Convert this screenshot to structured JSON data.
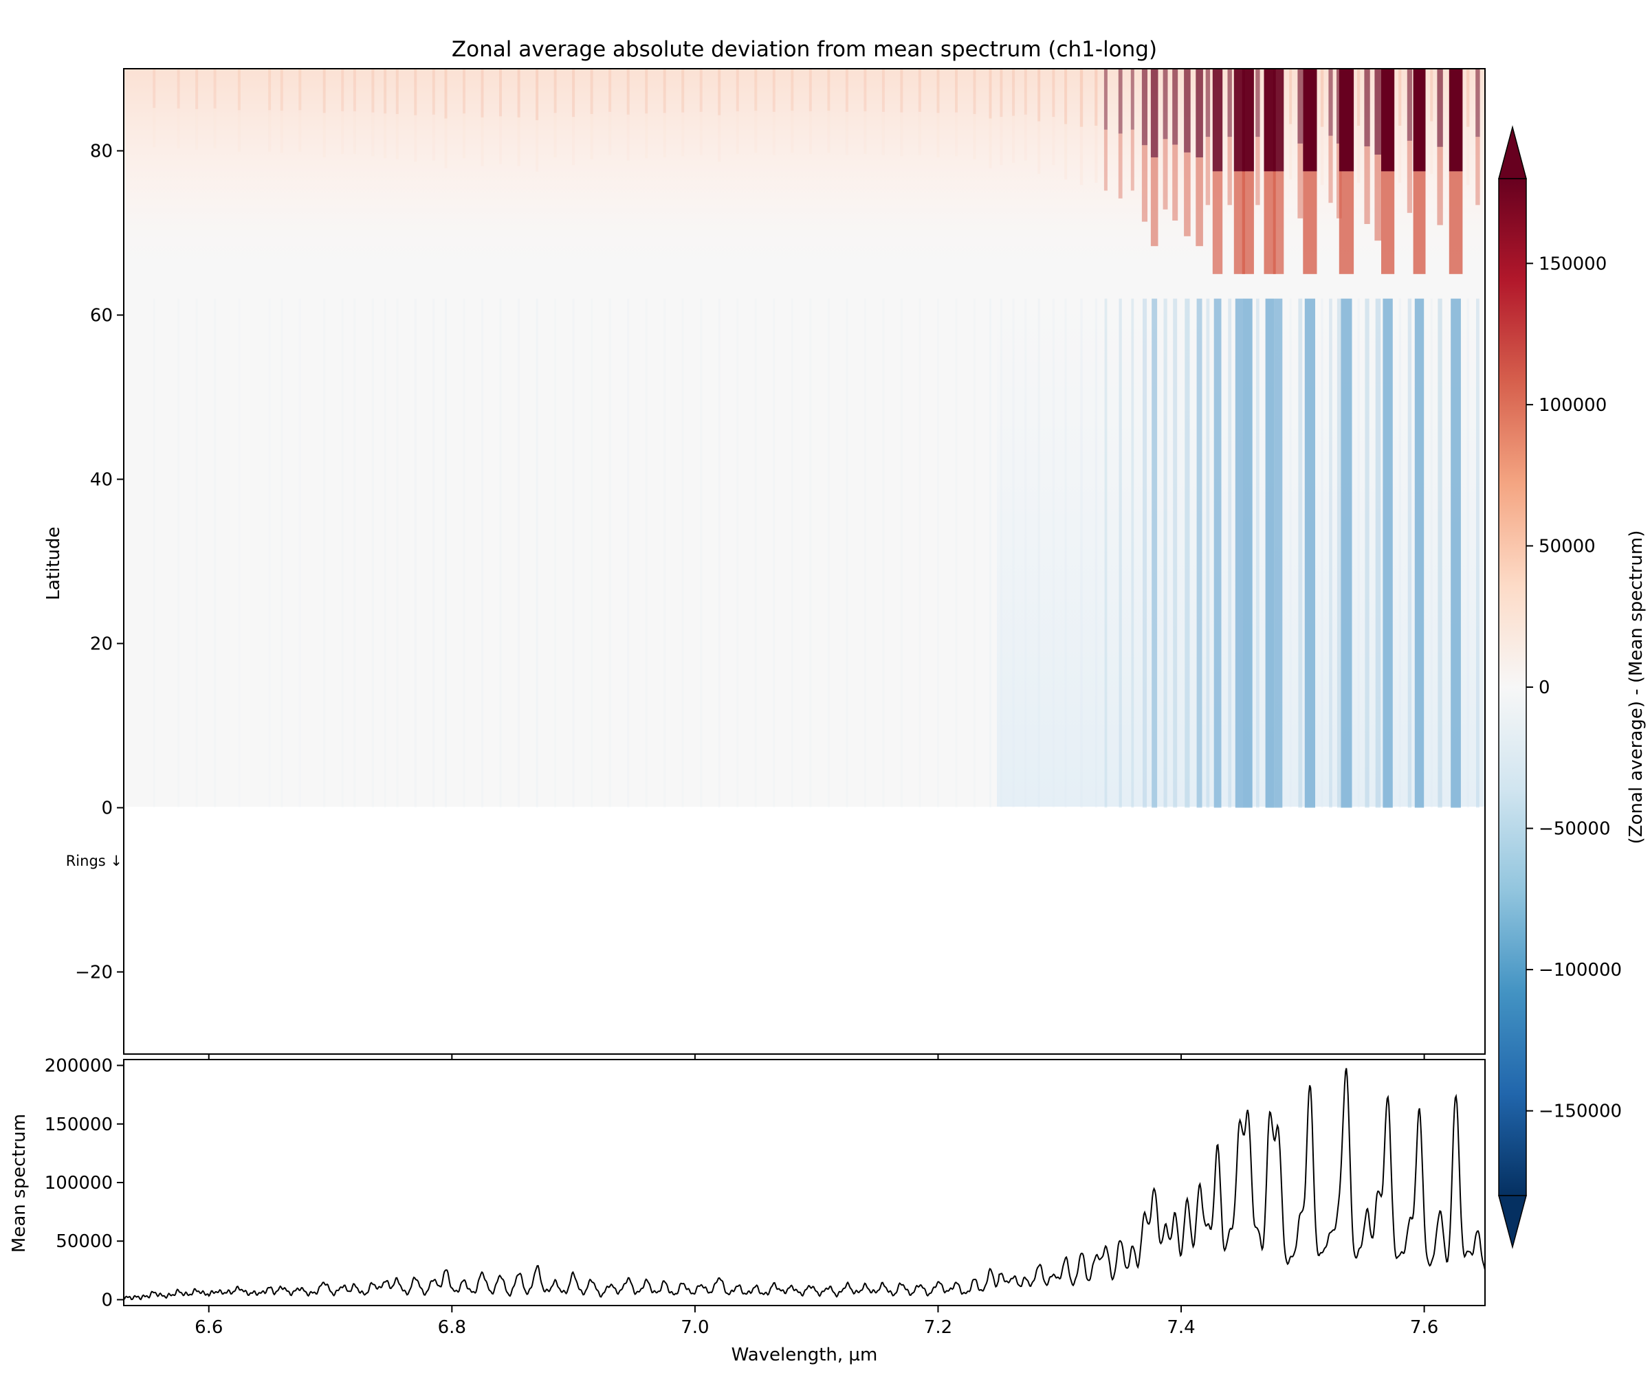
{
  "chart_data": [
    {
      "type": "heatmap",
      "title": "Zonal average absolute deviation from mean spectrum (ch1-long)",
      "xlabel": "",
      "ylabel": "Latitude",
      "xlim": [
        6.53,
        7.65
      ],
      "ylim": [
        -30,
        90
      ],
      "yticks": [
        80,
        60,
        40,
        20,
        0,
        -20
      ],
      "ytick_labels": [
        "80",
        "60",
        "40",
        "20",
        "0",
        "−20"
      ],
      "data_latitude_range": [
        0,
        90
      ],
      "annotation": "Rings ↓",
      "colorscale": "RdBu_r",
      "colorbar": {
        "label": "(Zonal average) - (Mean spectrum)",
        "range": [
          -180000,
          180000
        ],
        "extend": "both",
        "ticks": [
          150000,
          100000,
          50000,
          0,
          -50000,
          -100000,
          -150000
        ],
        "tick_labels": [
          "150000",
          "100000",
          "50000",
          "0",
          "−50000",
          "−100000",
          "−150000"
        ]
      }
    },
    {
      "type": "line",
      "title": "",
      "xlabel": "Wavelength, µm",
      "ylabel": "Mean spectrum",
      "xlim": [
        6.53,
        7.65
      ],
      "ylim": [
        -5000,
        205000
      ],
      "xticks": [
        6.6,
        6.8,
        7.0,
        7.2,
        7.4,
        7.6
      ],
      "xtick_labels": [
        "6.6",
        "6.8",
        "7.0",
        "7.2",
        "7.4",
        "7.6"
      ],
      "yticks": [
        0,
        50000,
        100000,
        150000,
        200000
      ],
      "ytick_labels": [
        "0",
        "50000",
        "100000",
        "150000",
        "200000"
      ],
      "series": [
        {
          "peaks": [
            [
              6.555,
              6000
            ],
            [
              6.575,
              7000
            ],
            [
              6.59,
              8000
            ],
            [
              6.605,
              7000
            ],
            [
              6.625,
              10000
            ],
            [
              6.65,
              10000
            ],
            [
              6.66,
              11000
            ],
            [
              6.675,
              10000
            ],
            [
              6.695,
              15000
            ],
            [
              6.71,
              12000
            ],
            [
              6.72,
              12000
            ],
            [
              6.735,
              14000
            ],
            [
              6.745,
              16000
            ],
            [
              6.755,
              17000
            ],
            [
              6.77,
              19000
            ],
            [
              6.785,
              18000
            ],
            [
              6.795,
              25000
            ],
            [
              6.81,
              16000
            ],
            [
              6.825,
              23000
            ],
            [
              6.84,
              21000
            ],
            [
              6.855,
              23000
            ],
            [
              6.87,
              28000
            ],
            [
              6.885,
              15000
            ],
            [
              6.9,
              22000
            ],
            [
              6.915,
              17000
            ],
            [
              6.93,
              13000
            ],
            [
              6.945,
              18000
            ],
            [
              6.96,
              16000
            ],
            [
              6.975,
              15000
            ],
            [
              6.99,
              14000
            ],
            [
              7.005,
              13000
            ],
            [
              7.02,
              19000
            ],
            [
              7.035,
              12000
            ],
            [
              7.05,
              11000
            ],
            [
              7.065,
              13000
            ],
            [
              7.08,
              11000
            ],
            [
              7.095,
              12000
            ],
            [
              7.11,
              11000
            ],
            [
              7.125,
              13000
            ],
            [
              7.14,
              12000
            ],
            [
              7.155,
              13000
            ],
            [
              7.17,
              14000
            ],
            [
              7.185,
              13000
            ],
            [
              7.2,
              15000
            ],
            [
              7.215,
              14000
            ],
            [
              7.23,
              17000
            ],
            [
              7.243,
              25000
            ],
            [
              7.252,
              22000
            ],
            [
              7.262,
              20000
            ],
            [
              7.272,
              18000
            ],
            [
              7.283,
              30000
            ],
            [
              7.295,
              22000
            ],
            [
              7.305,
              35000
            ],
            [
              7.318,
              40000
            ],
            [
              7.33,
              38000
            ],
            [
              7.338,
              45000
            ],
            [
              7.35,
              52000
            ],
            [
              7.36,
              45000
            ],
            [
              7.37,
              73000
            ],
            [
              7.378,
              95000
            ],
            [
              7.387,
              62000
            ],
            [
              7.395,
              72000
            ],
            [
              7.405,
              86000
            ],
            [
              7.415,
              95000
            ],
            [
              7.422,
              58000
            ],
            [
              7.43,
              130000
            ],
            [
              7.44,
              58000
            ],
            [
              7.448,
              146000
            ],
            [
              7.455,
              155000
            ],
            [
              7.463,
              58000
            ],
            [
              7.473,
              155000
            ],
            [
              7.48,
              140000
            ],
            [
              7.49,
              35000
            ],
            [
              7.498,
              70000
            ],
            [
              7.506,
              182000
            ],
            [
              7.516,
              40000
            ],
            [
              7.523,
              56000
            ],
            [
              7.53,
              70000
            ],
            [
              7.536,
              192000
            ],
            [
              7.546,
              38000
            ],
            [
              7.553,
              75000
            ],
            [
              7.562,
              90000
            ],
            [
              7.57,
              173000
            ],
            [
              7.58,
              38000
            ],
            [
              7.588,
              65000
            ],
            [
              7.596,
              161000
            ],
            [
              7.606,
              30000
            ],
            [
              7.613,
              76000
            ],
            [
              7.626,
              176000
            ],
            [
              7.636,
              40000
            ],
            [
              7.644,
              58000
            ]
          ]
        }
      ]
    }
  ]
}
